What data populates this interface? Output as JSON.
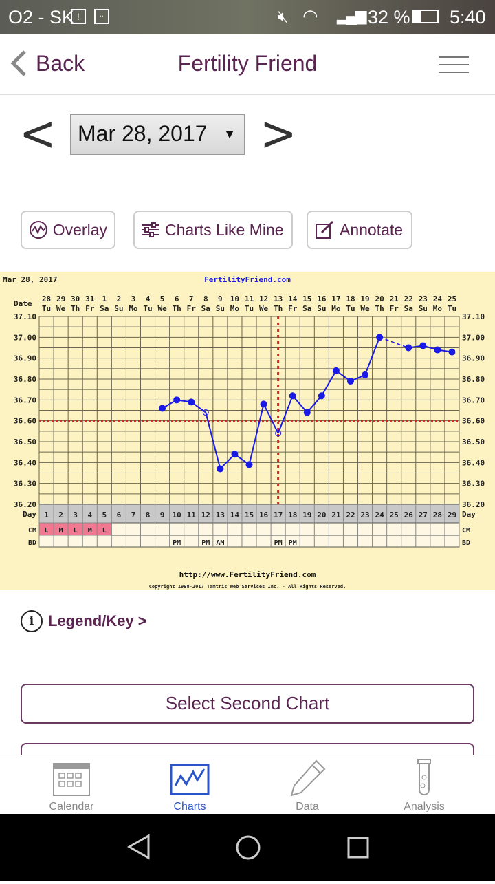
{
  "status_bar": {
    "carrier": "O2 - SK",
    "battery": "32 %",
    "time": "5:40"
  },
  "header": {
    "back_label": "Back",
    "title": "Fertility Friend"
  },
  "date_selector": {
    "value": "Mar 28, 2017"
  },
  "toolbar": {
    "overlay": "Overlay",
    "charts_like_mine": "Charts Like Mine",
    "annotate": "Annotate"
  },
  "chart_data": {
    "type": "line",
    "title": "Mar 28, 2017",
    "site": "FertilityFriend.com",
    "date_label": "Date",
    "dates": [
      "28",
      "29",
      "30",
      "31",
      "1",
      "2",
      "3",
      "4",
      "5",
      "6",
      "7",
      "8",
      "9",
      "10",
      "11",
      "12",
      "13",
      "14",
      "15",
      "16",
      "17",
      "18",
      "19",
      "20",
      "21",
      "22",
      "23",
      "24",
      "25"
    ],
    "weekdays": [
      "Tu",
      "We",
      "Th",
      "Fr",
      "Sa",
      "Su",
      "Mo",
      "Tu",
      "We",
      "Th",
      "Fr",
      "Sa",
      "Su",
      "Mo",
      "Tu",
      "We",
      "Th",
      "Fr",
      "Sa",
      "Su",
      "Mo",
      "Tu",
      "We",
      "Th",
      "Fr",
      "Sa",
      "Su",
      "Mo",
      "Tu"
    ],
    "day_label": "Day",
    "days": [
      1,
      2,
      3,
      4,
      5,
      6,
      7,
      8,
      9,
      10,
      11,
      12,
      13,
      14,
      15,
      16,
      17,
      18,
      19,
      20,
      21,
      22,
      23,
      24,
      25,
      26,
      27,
      28,
      29
    ],
    "ylim": [
      36.2,
      37.1
    ],
    "yticks": [
      "37.10",
      "37.00",
      "36.90",
      "36.80",
      "36.70",
      "36.60",
      "36.50",
      "36.40",
      "36.30",
      "36.20"
    ],
    "temperatures": [
      null,
      null,
      null,
      null,
      null,
      null,
      null,
      null,
      36.66,
      36.7,
      36.69,
      36.64,
      36.37,
      36.44,
      36.39,
      36.68,
      36.54,
      36.72,
      36.64,
      36.72,
      36.84,
      36.79,
      36.82,
      37.0,
      null,
      36.95,
      36.96,
      36.94,
      36.93
    ],
    "open_points_days": [
      12,
      17
    ],
    "coverline": 36.6,
    "ovulation_day": 17,
    "cm_label": "CM",
    "cm": [
      "L",
      "M",
      "L",
      "M",
      "L",
      "",
      "",
      "",
      "",
      "",
      "",
      "",
      "",
      "",
      "",
      "",
      "",
      "",
      "",
      "",
      "",
      "",
      "",
      "",
      "",
      "",
      "",
      "",
      ""
    ],
    "bd_label": "BD",
    "bd": [
      "",
      "",
      "",
      "",
      "",
      "",
      "",
      "",
      "",
      "PM",
      "",
      "PM",
      "AM",
      "",
      "",
      "",
      "PM",
      "PM",
      "",
      "",
      "",
      "",
      "",
      "",
      "",
      "",
      "",
      "",
      ""
    ],
    "grid": true,
    "colors": {
      "line": "#1a1ae6",
      "coverline": "#e02020",
      "background": "#fdf3c2",
      "cm_fill": "#f07890",
      "day_row": "#c8c8c8"
    },
    "footer_url": "http://www.FertilityFriend.com",
    "copyright": "Copyright 1998-2017 Tamtris Web Services Inc. - All Rights Reserved."
  },
  "legend_link": "Legend/Key >",
  "buttons": {
    "select_second_chart": "Select Second Chart"
  },
  "tabs": [
    {
      "label": "Calendar"
    },
    {
      "label": "Charts",
      "active": true
    },
    {
      "label": "Data"
    },
    {
      "label": "Analysis"
    }
  ],
  "accent": "#5a2550"
}
